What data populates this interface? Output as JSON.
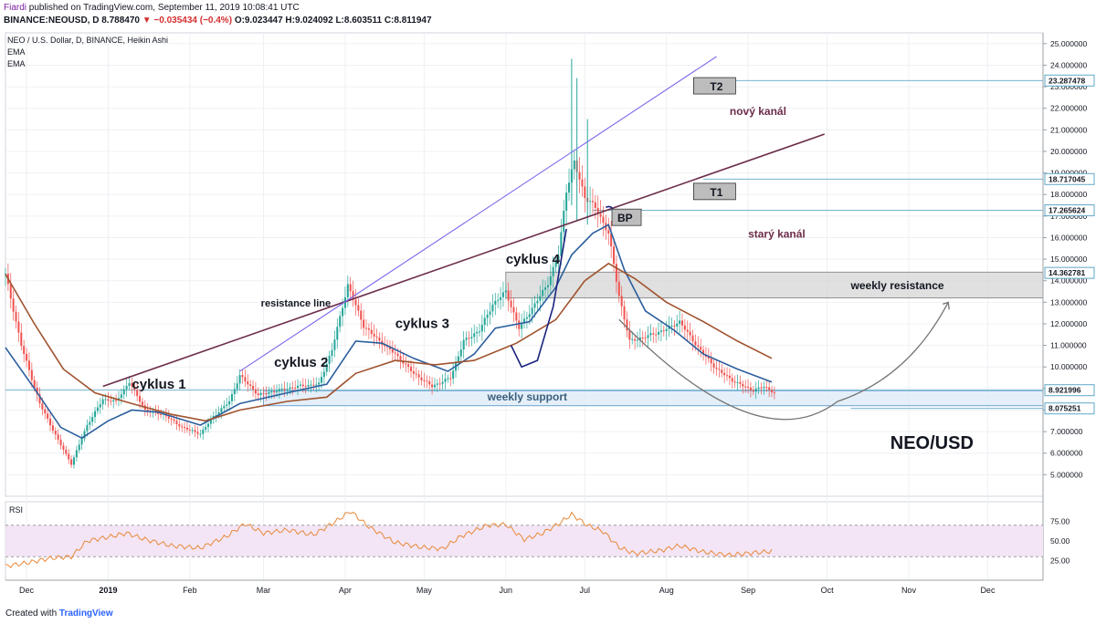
{
  "header": {
    "author": "Fiardi",
    "published_text": "published on TradingView.com, September 11, 2019 10:08:41 UTC",
    "symbol": "BINANCE:NEOUSD, D",
    "last": "8.788470",
    "change": "▼ −0.035434 (−0.4%)",
    "ohlc": "O:9.023447 H:9.024092 L:8.603511 C:8.811947"
  },
  "legend": {
    "title": "NEO / U.S. Dollar, D, BINANCE, Heikin Ashi",
    "ema1": "EMA",
    "ema2": "EMA"
  },
  "footer": {
    "created_with": "Created with",
    "brand": "TradingView"
  },
  "colors": {
    "bull": "#26a69a",
    "bear": "#ef5350",
    "ema_fast": "#2c5f9e",
    "ema_slow": "#a0522d",
    "rsi_line": "#e8893a",
    "rsi_band": "#f3e5f5",
    "zone": "#d6d6d6",
    "support_zone": "#dbe9f7",
    "channel_new": "#7b68ee",
    "channel_old": "#6d2d4a",
    "annotation_text": "#6d2d4a"
  },
  "chart_data": {
    "type": "candlestick",
    "price_axis": {
      "ylim": [
        4.0,
        25.5
      ],
      "ticks": [
        "25.000000",
        "24.000000",
        "23.000000",
        "22.000000",
        "21.000000",
        "20.000000",
        "19.000000",
        "18.000000",
        "17.000000",
        "16.000000",
        "15.000000",
        "14.000000",
        "13.000000",
        "12.000000",
        "11.000000",
        "10.000000",
        "9.000000",
        "8.000000",
        "7.000000",
        "6.000000",
        "5.000000"
      ],
      "tick_values": [
        25,
        24,
        23,
        22,
        21,
        20,
        19,
        18,
        17,
        16,
        15,
        14,
        13,
        12,
        11,
        10,
        9,
        8,
        7,
        6,
        5
      ]
    },
    "x_axis": {
      "ticks": [
        "Dec",
        "2019",
        "Feb",
        "Mar",
        "Apr",
        "May",
        "Jun",
        "Jul",
        "Aug",
        "Sep",
        "Oct",
        "Nov",
        "Dec"
      ],
      "tick_dates": [
        "2018-12-01",
        "2019-01-01",
        "2019-02-01",
        "2019-03-01",
        "2019-04-01",
        "2019-05-01",
        "2019-06-01",
        "2019-07-01",
        "2019-08-01",
        "2019-09-01",
        "2019-10-01",
        "2019-11-01",
        "2019-12-01"
      ],
      "range": [
        "2018-11-23",
        "2019-12-22"
      ]
    },
    "price_labels": [
      {
        "value": 23.287478,
        "text": "23.287478"
      },
      {
        "value": 18.717045,
        "text": "18.717045"
      },
      {
        "value": 17.265624,
        "text": "17.265624"
      },
      {
        "value": 14.362781,
        "text": "14.362781"
      },
      {
        "value": 8.921996,
        "text": "8.921996"
      },
      {
        "value": 8.075251,
        "text": "8.075251"
      }
    ],
    "price_path": [
      [
        "2018-11-23",
        14.3
      ],
      [
        "2018-11-29",
        11.0
      ],
      [
        "2018-12-06",
        8.3
      ],
      [
        "2018-12-13",
        6.6
      ],
      [
        "2018-12-18",
        5.5
      ],
      [
        "2018-12-24",
        7.3
      ],
      [
        "2018-12-30",
        8.5
      ],
      [
        "2019-01-04",
        8.4
      ],
      [
        "2019-01-09",
        9.3
      ],
      [
        "2019-01-15",
        8.0
      ],
      [
        "2019-01-22",
        7.8
      ],
      [
        "2019-01-29",
        7.2
      ],
      [
        "2019-02-05",
        6.9
      ],
      [
        "2019-02-10",
        7.7
      ],
      [
        "2019-02-16",
        8.4
      ],
      [
        "2019-02-20",
        9.6
      ],
      [
        "2019-02-27",
        8.7
      ],
      [
        "2019-03-06",
        8.9
      ],
      [
        "2019-03-14",
        9.1
      ],
      [
        "2019-03-22",
        9.2
      ],
      [
        "2019-03-27",
        10.8
      ],
      [
        "2019-04-02",
        13.8
      ],
      [
        "2019-04-08",
        11.9
      ],
      [
        "2019-04-14",
        11.2
      ],
      [
        "2019-04-20",
        10.6
      ],
      [
        "2019-04-27",
        9.7
      ],
      [
        "2019-05-04",
        9.1
      ],
      [
        "2019-05-11",
        9.5
      ],
      [
        "2019-05-16",
        11.2
      ],
      [
        "2019-05-22",
        11.7
      ],
      [
        "2019-05-27",
        12.9
      ],
      [
        "2019-06-01",
        13.5
      ],
      [
        "2019-06-06",
        11.8
      ],
      [
        "2019-06-12",
        12.9
      ],
      [
        "2019-06-17",
        13.9
      ],
      [
        "2019-06-21",
        15.2
      ],
      [
        "2019-06-24",
        18.2
      ],
      [
        "2019-06-27",
        19.5
      ],
      [
        "2019-07-01",
        17.9
      ],
      [
        "2019-07-05",
        17.4
      ],
      [
        "2019-07-10",
        16.2
      ],
      [
        "2019-07-14",
        13.3
      ],
      [
        "2019-07-18",
        11.2
      ],
      [
        "2019-07-24",
        11.4
      ],
      [
        "2019-07-31",
        11.7
      ],
      [
        "2019-08-06",
        12.1
      ],
      [
        "2019-08-13",
        10.9
      ],
      [
        "2019-08-20",
        9.9
      ],
      [
        "2019-08-27",
        9.3
      ],
      [
        "2019-09-03",
        8.9
      ],
      [
        "2019-09-07",
        9.1
      ],
      [
        "2019-09-11",
        8.8
      ]
    ],
    "ema_fast": [
      [
        "2018-11-23",
        10.9
      ],
      [
        "2018-12-04",
        9.0
      ],
      [
        "2018-12-14",
        7.2
      ],
      [
        "2018-12-22",
        6.7
      ],
      [
        "2019-01-01",
        7.5
      ],
      [
        "2019-01-10",
        8.0
      ],
      [
        "2019-01-20",
        7.9
      ],
      [
        "2019-02-05",
        7.3
      ],
      [
        "2019-02-20",
        8.3
      ],
      [
        "2019-03-10",
        8.8
      ],
      [
        "2019-03-25",
        9.2
      ],
      [
        "2019-04-05",
        11.2
      ],
      [
        "2019-04-15",
        11.1
      ],
      [
        "2019-04-27",
        10.4
      ],
      [
        "2019-05-10",
        9.8
      ],
      [
        "2019-05-20",
        10.6
      ],
      [
        "2019-05-28",
        11.8
      ],
      [
        "2019-06-10",
        12.1
      ],
      [
        "2019-06-20",
        13.7
      ],
      [
        "2019-06-26",
        15.2
      ],
      [
        "2019-07-04",
        16.2
      ],
      [
        "2019-07-10",
        16.6
      ],
      [
        "2019-07-16",
        14.5
      ],
      [
        "2019-07-24",
        12.6
      ],
      [
        "2019-08-04",
        11.7
      ],
      [
        "2019-08-15",
        10.6
      ],
      [
        "2019-08-28",
        9.9
      ],
      [
        "2019-09-10",
        9.3
      ]
    ],
    "ema_slow": [
      [
        "2018-11-23",
        14.3
      ],
      [
        "2018-12-04",
        12.0
      ],
      [
        "2018-12-15",
        9.9
      ],
      [
        "2018-12-27",
        8.8
      ],
      [
        "2019-01-10",
        8.3
      ],
      [
        "2019-01-25",
        7.8
      ],
      [
        "2019-02-07",
        7.5
      ],
      [
        "2019-02-20",
        8.0
      ],
      [
        "2019-03-10",
        8.4
      ],
      [
        "2019-03-25",
        8.6
      ],
      [
        "2019-04-05",
        9.7
      ],
      [
        "2019-04-20",
        10.3
      ],
      [
        "2019-05-05",
        10.1
      ],
      [
        "2019-05-20",
        10.3
      ],
      [
        "2019-06-05",
        11.1
      ],
      [
        "2019-06-20",
        12.2
      ],
      [
        "2019-07-01",
        14.0
      ],
      [
        "2019-07-10",
        14.8
      ],
      [
        "2019-07-20",
        14.1
      ],
      [
        "2019-08-01",
        13.0
      ],
      [
        "2019-08-15",
        12.1
      ],
      [
        "2019-08-28",
        11.2
      ],
      [
        "2019-09-10",
        10.4
      ]
    ],
    "rsi": {
      "ticks": [
        "75.00",
        "50.00",
        "25.00"
      ],
      "tick_values": [
        75,
        50,
        25
      ],
      "band": [
        30,
        70
      ],
      "ylim": [
        0,
        100
      ],
      "points": [
        [
          "2018-11-23",
          18
        ],
        [
          "2018-12-01",
          22
        ],
        [
          "2018-12-10",
          28
        ],
        [
          "2018-12-18",
          30
        ],
        [
          "2018-12-24",
          50
        ],
        [
          "2019-01-01",
          55
        ],
        [
          "2019-01-08",
          60
        ],
        [
          "2019-01-15",
          52
        ],
        [
          "2019-01-25",
          44
        ],
        [
          "2019-02-05",
          41
        ],
        [
          "2019-02-15",
          56
        ],
        [
          "2019-02-22",
          72
        ],
        [
          "2019-03-01",
          60
        ],
        [
          "2019-03-10",
          64
        ],
        [
          "2019-03-20",
          58
        ],
        [
          "2019-03-28",
          74
        ],
        [
          "2019-04-03",
          88
        ],
        [
          "2019-04-10",
          68
        ],
        [
          "2019-04-20",
          48
        ],
        [
          "2019-04-30",
          42
        ],
        [
          "2019-05-08",
          40
        ],
        [
          "2019-05-15",
          56
        ],
        [
          "2019-05-25",
          70
        ],
        [
          "2019-06-01",
          71
        ],
        [
          "2019-06-08",
          52
        ],
        [
          "2019-06-15",
          60
        ],
        [
          "2019-06-22",
          74
        ],
        [
          "2019-06-26",
          84
        ],
        [
          "2019-07-02",
          70
        ],
        [
          "2019-07-08",
          62
        ],
        [
          "2019-07-14",
          42
        ],
        [
          "2019-07-20",
          34
        ],
        [
          "2019-07-30",
          38
        ],
        [
          "2019-08-06",
          44
        ],
        [
          "2019-08-15",
          36
        ],
        [
          "2019-08-25",
          32
        ],
        [
          "2019-09-03",
          35
        ],
        [
          "2019-09-11",
          37
        ]
      ]
    },
    "zones": [
      {
        "name": "weekly resistance",
        "from": 13.2,
        "to": 14.4,
        "start": "2019-06-01",
        "end": "2019-12-22"
      },
      {
        "name": "weekly support",
        "from": 8.2,
        "to": 8.9,
        "start": "2019-03-01",
        "end": "2019-12-22"
      }
    ],
    "horizontal_lines": [
      {
        "value": 23.287478,
        "start": "2019-08-15"
      },
      {
        "value": 18.717045,
        "start": "2019-08-15"
      },
      {
        "value": 17.265624,
        "start": "2019-07-04"
      },
      {
        "value": 8.921996,
        "start": "2018-11-23"
      },
      {
        "value": 8.075251,
        "start": "2019-10-10"
      }
    ],
    "trend_lines": [
      {
        "name": "resistance line",
        "from": [
          "2018-12-30",
          9.1
        ],
        "to": [
          "2019-09-30",
          20.8
        ]
      },
      {
        "name": "nový kanál",
        "from": [
          "2019-02-20",
          9.8
        ],
        "to": [
          "2019-08-20",
          24.4
        ]
      }
    ],
    "annotations": [
      {
        "text": "cyklus 1",
        "x": "2019-01-10",
        "y": 9.0
      },
      {
        "text": "cyklus 2",
        "x": "2019-03-05",
        "y": 10.0
      },
      {
        "text": "cyklus 3",
        "x": "2019-04-20",
        "y": 11.8
      },
      {
        "text": "cyklus 4",
        "x": "2019-06-01",
        "y": 14.8
      },
      {
        "text": "resistance line",
        "x": "2019-02-28",
        "y": 12.8
      },
      {
        "text": "nový kanál",
        "x": "2019-08-25",
        "y": 21.7
      },
      {
        "text": "starý kanál",
        "x": "2019-09-01",
        "y": 16.0
      },
      {
        "text": "weekly resistance",
        "x": "2019-10-10",
        "y": 13.6
      },
      {
        "text": "weekly support",
        "x": "2019-05-25",
        "y": 8.45
      },
      {
        "text": "NEO/USD",
        "x": "2019-10-25",
        "y": 6.2
      }
    ],
    "boxes": [
      {
        "text": "T2",
        "x": "2019-08-12",
        "y": 23.0
      },
      {
        "text": "T1",
        "x": "2019-08-12",
        "y": 18.1
      },
      {
        "text": "BP",
        "x": "2019-07-12",
        "y": 16.9
      }
    ]
  }
}
